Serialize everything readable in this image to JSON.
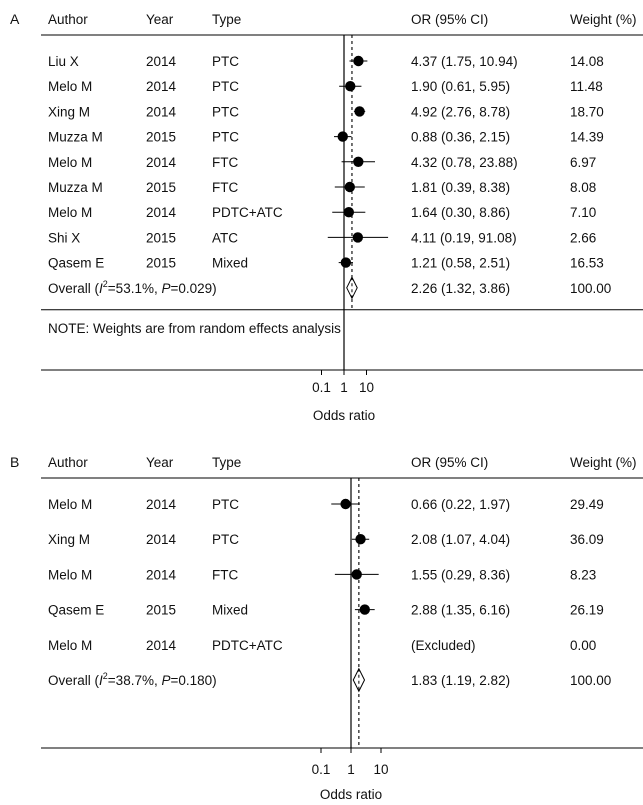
{
  "chart_data": [
    {
      "type": "forest",
      "panel_label": "A",
      "columns": [
        "Author",
        "Year",
        "Type",
        "OR (95% CI)",
        "Weight (%)"
      ],
      "xlabel": "Odds ratio",
      "xscale": "log",
      "xticks": [
        "0.1",
        "1",
        "10"
      ],
      "reference_line": 1,
      "studies": [
        {
          "author": "Liu X",
          "year": "2014",
          "type": "PTC",
          "or_text": "4.37 (1.75, 10.94)",
          "weight": "14.08",
          "or": 4.37,
          "lo": 1.75,
          "hi": 10.94
        },
        {
          "author": "Melo M",
          "year": "2014",
          "type": "PTC",
          "or_text": "1.90 (0.61, 5.95)",
          "weight": "11.48",
          "or": 1.9,
          "lo": 0.61,
          "hi": 5.95
        },
        {
          "author": "Xing M",
          "year": "2014",
          "type": "PTC",
          "or_text": "4.92 (2.76, 8.78)",
          "weight": "18.70",
          "or": 4.92,
          "lo": 2.76,
          "hi": 8.78
        },
        {
          "author": "Muzza M",
          "year": "2015",
          "type": "PTC",
          "or_text": "0.88 (0.36, 2.15)",
          "weight": "14.39",
          "or": 0.88,
          "lo": 0.36,
          "hi": 2.15
        },
        {
          "author": "Melo M",
          "year": "2014",
          "type": "FTC",
          "or_text": "4.32 (0.78, 23.88)",
          "weight": "6.97",
          "or": 4.32,
          "lo": 0.78,
          "hi": 23.88
        },
        {
          "author": "Muzza M",
          "year": "2015",
          "type": "FTC",
          "or_text": "1.81 (0.39, 8.38)",
          "weight": "8.08",
          "or": 1.81,
          "lo": 0.39,
          "hi": 8.38
        },
        {
          "author": "Melo M",
          "year": "2014",
          "type": "PDTC+ATC",
          "or_text": "1.64 (0.30, 8.86)",
          "weight": "7.10",
          "or": 1.64,
          "lo": 0.3,
          "hi": 8.86
        },
        {
          "author": "Shi X",
          "year": "2015",
          "type": "ATC",
          "or_text": "4.11 (0.19, 91.08)",
          "weight": "2.66",
          "or": 4.11,
          "lo": 0.19,
          "hi": 91.08
        },
        {
          "author": "Qasem E",
          "year": "2015",
          "type": "Mixed",
          "or_text": "1.21 (0.58, 2.51)",
          "weight": "16.53",
          "or": 1.21,
          "lo": 0.58,
          "hi": 2.51
        }
      ],
      "overall": {
        "label_prefix": "Overall (",
        "i2_symbol": "I",
        "i2_sup": "2",
        "label_mid": "=53.1%, ",
        "p_symbol": "P",
        "label_suffix": "=0.029)",
        "or_text": "2.26 (1.32, 3.86)",
        "weight": "100.00",
        "or": 2.26,
        "lo": 1.32,
        "hi": 3.86
      },
      "note": "NOTE: Weights are from random effects analysis"
    },
    {
      "type": "forest",
      "panel_label": "B",
      "columns": [
        "Author",
        "Year",
        "Type",
        "OR (95% CI)",
        "Weight (%)"
      ],
      "xlabel": "Odds ratio",
      "xscale": "log",
      "xticks": [
        "0.1",
        "1",
        "10"
      ],
      "reference_line": 1,
      "studies": [
        {
          "author": "Melo M",
          "year": "2014",
          "type": "PTC",
          "or_text": "0.66 (0.22, 1.97)",
          "weight": "29.49",
          "or": 0.66,
          "lo": 0.22,
          "hi": 1.97
        },
        {
          "author": "Xing M",
          "year": "2014",
          "type": "PTC",
          "or_text": "2.08 (1.07, 4.04)",
          "weight": "36.09",
          "or": 2.08,
          "lo": 1.07,
          "hi": 4.04
        },
        {
          "author": "Melo M",
          "year": "2014",
          "type": "FTC",
          "or_text": "1.55 (0.29, 8.36)",
          "weight": "8.23",
          "or": 1.55,
          "lo": 0.29,
          "hi": 8.36
        },
        {
          "author": "Qasem E",
          "year": "2015",
          "type": "Mixed",
          "or_text": "2.88 (1.35, 6.16)",
          "weight": "26.19",
          "or": 2.88,
          "lo": 1.35,
          "hi": 6.16
        },
        {
          "author": "Melo M",
          "year": "2014",
          "type": "PDTC+ATC",
          "or_text": "(Excluded)",
          "weight": "0.00",
          "or": null,
          "lo": null,
          "hi": null
        }
      ],
      "overall": {
        "label_prefix": "Overall (",
        "i2_symbol": "I",
        "i2_sup": "2",
        "label_mid": "=38.7%, ",
        "p_symbol": "P",
        "label_suffix": "=0.180)",
        "or_text": "1.83 (1.19, 2.82)",
        "weight": "100.00",
        "or": 1.83,
        "lo": 1.19,
        "hi": 2.82
      },
      "note": ""
    }
  ]
}
